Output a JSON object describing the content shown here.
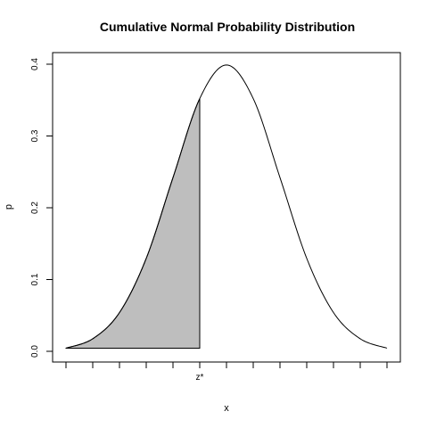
{
  "chart_data": {
    "type": "area",
    "title": "Cumulative Normal Probability Distribution",
    "xlabel": "x",
    "ylabel": "p",
    "xlim": [
      -3,
      3
    ],
    "ylim": [
      0,
      0.4
    ],
    "y_ticks": [
      0.0,
      0.1,
      0.2,
      0.3,
      0.4
    ],
    "y_tick_labels": [
      "0.0",
      "0.1",
      "0.2",
      "0.3",
      "0.4"
    ],
    "x_tick_count": 13,
    "x_tick_labels": [
      {
        "x": -0.5,
        "label": "z*"
      }
    ],
    "series": [
      {
        "x": [
          -3,
          -2.5,
          -2,
          -1.5,
          -1,
          -0.5,
          0,
          0.5,
          1,
          1.5,
          2,
          2.5,
          3
        ],
        "y": [
          0.0044,
          0.0175,
          0.054,
          0.1295,
          0.242,
          0.3521,
          0.3989,
          0.3521,
          0.242,
          0.1295,
          0.054,
          0.0175,
          0.0044
        ]
      }
    ],
    "shaded_region": {
      "from": -3,
      "to": -0.5,
      "color": "#bebebe"
    },
    "grid": false,
    "legend": "none"
  }
}
